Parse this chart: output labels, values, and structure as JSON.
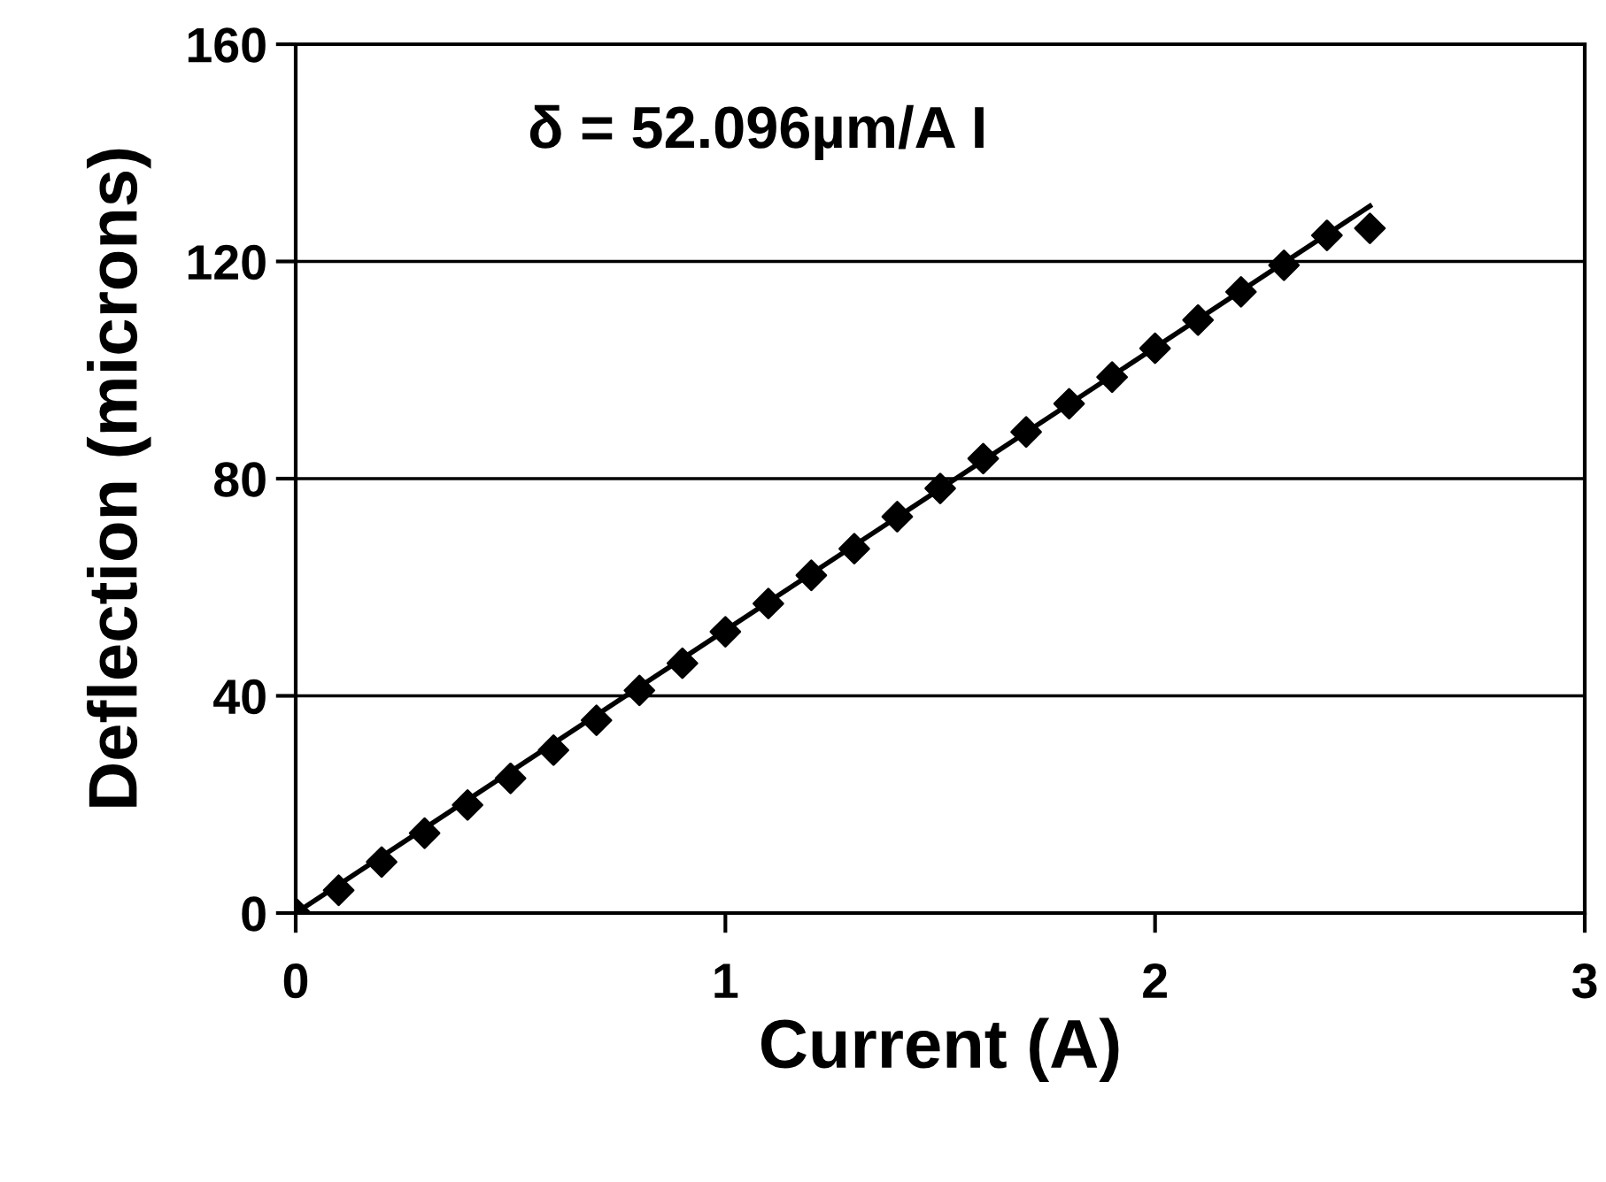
{
  "chart_data": {
    "type": "scatter",
    "xlabel": "Current (A)",
    "ylabel": "Deflection (microns)",
    "annotations": [
      "δ = 52.096µm/A I"
    ],
    "series": [
      {
        "color": "#000000",
        "marker": "diamond",
        "x": [
          0,
          0.1,
          0.2,
          0.3,
          0.4,
          0.5,
          0.6,
          0.7,
          0.8,
          0.9,
          1.0,
          1.1,
          1.2,
          1.3,
          1.4,
          1.5,
          1.6,
          1.7,
          1.8,
          1.9,
          2.0,
          2.1,
          2.2,
          2.3,
          2.4,
          2.5
        ],
        "values": [
          0,
          4.2,
          9.4,
          14.7,
          19.9,
          24.8,
          30,
          35.5,
          41,
          46,
          51.8,
          57,
          62.2,
          67.1,
          73,
          78.2,
          83.7,
          88.6,
          93.8,
          98.7,
          104,
          109.2,
          114.4,
          119.3,
          124.8,
          126.1
        ]
      },
      {
        "type": "line",
        "color": "#000000",
        "line_style": "solid",
        "x": [
          0,
          2.5
        ],
        "values": [
          0,
          130.2
        ]
      }
    ],
    "xlim": [
      0,
      3
    ],
    "xticks": [
      0,
      1,
      2,
      3
    ],
    "ylim": [
      0,
      160
    ],
    "yticks": [
      0,
      40,
      80,
      120,
      160
    ],
    "grid": "y",
    "legend": false
  }
}
